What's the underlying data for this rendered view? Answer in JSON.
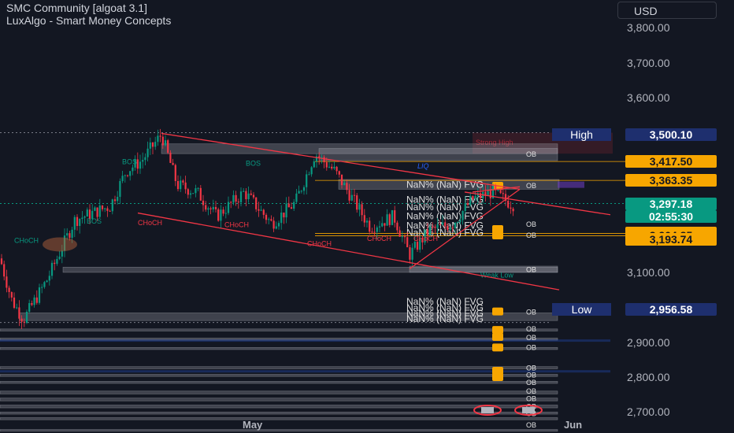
{
  "header": {
    "indicator_1": "SMC Community [algoat 3.1]",
    "indicator_2": "LuxAlgo - Smart Money Concepts",
    "currency": "USD"
  },
  "chart_data": {
    "type": "candlestick",
    "title": "",
    "ylim": [
      2640,
      3880
    ],
    "y_ticks": [
      "3,800.00",
      "3,700.00",
      "3,600.00",
      "3,100.00",
      "3,000.00",
      "2,900.00",
      "2,800.00",
      "2,700.00"
    ],
    "x_ticks": [
      "May",
      "Jun"
    ],
    "levels": {
      "high": {
        "label": "High",
        "value": "3,500.10"
      },
      "low": {
        "label": "Low",
        "value": "2,956.58"
      },
      "strong_high": {
        "label": "Strong High",
        "value": "3,417.50"
      },
      "weak_low": {
        "label": "Weak Low"
      }
    },
    "price_tags": [
      {
        "value": "3,417.50",
        "bg": "#f7a600",
        "fg": "#131722"
      },
      {
        "value": "3,363.35",
        "bg": "#f7a600",
        "fg": "#131722"
      },
      {
        "value": "3,297.18",
        "bg": "#089981",
        "fg": "#ffffff",
        "sub": "02:55:30"
      },
      {
        "value": "3,211.68",
        "bg": "#f7a600",
        "fg": "#131722"
      },
      {
        "value": "3,204.85",
        "bg": "#f7a600",
        "fg": "#131722"
      },
      {
        "value": "3,193.74",
        "bg": "#f7a600",
        "fg": "#131722"
      }
    ],
    "last_price": 3297.18,
    "countdown": "02:55:30",
    "annotations": [
      "CHoCH",
      "BOS",
      "CHoCH",
      "BOS",
      "CHoCH",
      "CHoCH",
      "BOS",
      "CHoCH",
      "CHoCH",
      "LIQ"
    ],
    "fvg_label": "NaN% (NaN) FVG",
    "ob_label": "OB",
    "colors": {
      "up": "#089981",
      "down": "#f23645",
      "background": "#131722",
      "orange": "#f7a600",
      "trend": "#f23645"
    }
  }
}
